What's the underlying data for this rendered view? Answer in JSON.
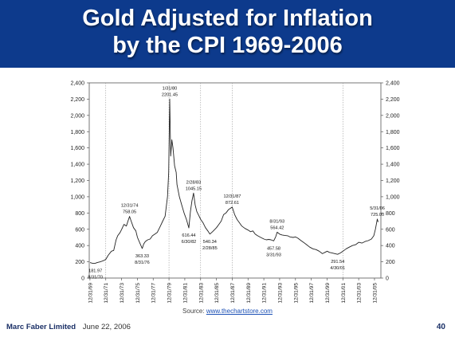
{
  "slide": {
    "title_line1": "Gold Adjusted for Inflation",
    "title_line2": "by the CPI 1969-2006",
    "source_prefix": "Source: ",
    "source_link": "www.thechartstore.com",
    "footer_org": "Marc Faber Limited",
    "footer_date": "June 22, 2006",
    "page_number": "40",
    "banner_color": "#0d3a8c"
  },
  "chart_data": {
    "type": "line",
    "title": "",
    "xlabel": "",
    "ylabel": "",
    "ylim": [
      0,
      2400
    ],
    "y_ticks": [
      0,
      200,
      400,
      600,
      800,
      1000,
      1200,
      1400,
      1600,
      1800,
      2000,
      2200,
      2400
    ],
    "y_tick_labels": [
      "0",
      "200",
      "400",
      "600",
      "800",
      "1,000",
      "1,200",
      "1,400",
      "1,600",
      "1,800",
      "2,000",
      "2,200",
      "2,400"
    ],
    "xlim": [
      1969.9,
      2006.8
    ],
    "x_ticks": [
      1969.99,
      1971.99,
      1973.99,
      1975.99,
      1977.99,
      1979.99,
      1981.99,
      1983.99,
      1985.99,
      1987.99,
      1989.99,
      1991.99,
      1993.99,
      1995.99,
      1997.99,
      1999.99,
      2001.99,
      2003.99,
      2005.99
    ],
    "x_tick_labels": [
      "12/31/69",
      "12/31/71",
      "12/31/73",
      "12/31/75",
      "12/31/77",
      "12/31/79",
      "12/31/81",
      "12/31/83",
      "12/31/85",
      "12/31/87",
      "12/31/89",
      "12/31/91",
      "12/31/93",
      "12/31/95",
      "12/31/97",
      "12/31/99",
      "12/31/01",
      "12/31/03",
      "12/31/05"
    ],
    "vlines": [
      1971.99,
      1979.99,
      1983.99,
      1987.99,
      2001.99
    ],
    "grid": false,
    "line_color": "#222222",
    "series": [
      {
        "values": [
          [
            1970.0,
            190
          ],
          [
            1970.3,
            182
          ],
          [
            1970.67,
            181.97
          ],
          [
            1970.9,
            190
          ],
          [
            1971.3,
            200
          ],
          [
            1971.7,
            215
          ],
          [
            1972.0,
            230
          ],
          [
            1972.3,
            280
          ],
          [
            1972.7,
            330
          ],
          [
            1973.0,
            340
          ],
          [
            1973.3,
            470
          ],
          [
            1973.5,
            520
          ],
          [
            1973.8,
            560
          ],
          [
            1974.0,
            600
          ],
          [
            1974.3,
            660
          ],
          [
            1974.6,
            640
          ],
          [
            1974.8,
            700
          ],
          [
            1975.0,
            758.05
          ],
          [
            1975.2,
            700
          ],
          [
            1975.5,
            620
          ],
          [
            1975.8,
            580
          ],
          [
            1976.0,
            500
          ],
          [
            1976.3,
            430
          ],
          [
            1976.6,
            363.33
          ],
          [
            1976.8,
            420
          ],
          [
            1977.0,
            450
          ],
          [
            1977.3,
            470
          ],
          [
            1977.6,
            480
          ],
          [
            1977.9,
            520
          ],
          [
            1978.2,
            540
          ],
          [
            1978.5,
            560
          ],
          [
            1978.9,
            640
          ],
          [
            1979.2,
            700
          ],
          [
            1979.5,
            760
          ],
          [
            1979.8,
            1000
          ],
          [
            1979.95,
            1300
          ],
          [
            1980.08,
            2201.45
          ],
          [
            1980.2,
            1500
          ],
          [
            1980.35,
            1700
          ],
          [
            1980.5,
            1600
          ],
          [
            1980.7,
            1380
          ],
          [
            1980.9,
            1300
          ],
          [
            1981.0,
            1150
          ],
          [
            1981.3,
            1000
          ],
          [
            1981.6,
            900
          ],
          [
            1981.9,
            800
          ],
          [
            1982.2,
            720
          ],
          [
            1982.5,
            616.44
          ],
          [
            1982.7,
            820
          ],
          [
            1982.9,
            950
          ],
          [
            1983.1,
            1045.15
          ],
          [
            1983.3,
            900
          ],
          [
            1983.5,
            820
          ],
          [
            1983.8,
            760
          ],
          [
            1984.0,
            720
          ],
          [
            1984.3,
            680
          ],
          [
            1984.6,
            620
          ],
          [
            1984.9,
            580
          ],
          [
            1985.16,
            540.34
          ],
          [
            1985.5,
            570
          ],
          [
            1985.8,
            600
          ],
          [
            1986.0,
            620
          ],
          [
            1986.3,
            660
          ],
          [
            1986.6,
            700
          ],
          [
            1986.9,
            780
          ],
          [
            1987.2,
            800
          ],
          [
            1987.5,
            840
          ],
          [
            1987.99,
            872.61
          ],
          [
            1988.3,
            780
          ],
          [
            1988.6,
            720
          ],
          [
            1988.9,
            680
          ],
          [
            1989.2,
            640
          ],
          [
            1989.6,
            610
          ],
          [
            1990.0,
            590
          ],
          [
            1990.3,
            570
          ],
          [
            1990.6,
            580
          ],
          [
            1990.9,
            540
          ],
          [
            1991.2,
            520
          ],
          [
            1991.6,
            500
          ],
          [
            1992.0,
            480
          ],
          [
            1992.3,
            470
          ],
          [
            1992.6,
            475
          ],
          [
            1992.9,
            470
          ],
          [
            1993.24,
            457.58
          ],
          [
            1993.5,
            510
          ],
          [
            1993.67,
            564.42
          ],
          [
            1994.0,
            540
          ],
          [
            1994.3,
            530
          ],
          [
            1994.6,
            525
          ],
          [
            1995.0,
            520
          ],
          [
            1995.3,
            505
          ],
          [
            1995.7,
            500
          ],
          [
            1996.0,
            505
          ],
          [
            1996.3,
            490
          ],
          [
            1996.7,
            460
          ],
          [
            1997.0,
            440
          ],
          [
            1997.4,
            410
          ],
          [
            1997.8,
            380
          ],
          [
            1998.2,
            360
          ],
          [
            1998.6,
            350
          ],
          [
            1999.0,
            330
          ],
          [
            1999.4,
            300
          ],
          [
            1999.8,
            320
          ],
          [
            2000.0,
            330
          ],
          [
            2000.3,
            315
          ],
          [
            2000.6,
            310
          ],
          [
            2001.0,
            300
          ],
          [
            2001.33,
            291.54
          ],
          [
            2001.7,
            310
          ],
          [
            2002.0,
            330
          ],
          [
            2002.4,
            360
          ],
          [
            2002.8,
            380
          ],
          [
            2003.2,
            400
          ],
          [
            2003.6,
            410
          ],
          [
            2004.0,
            440
          ],
          [
            2004.4,
            430
          ],
          [
            2004.8,
            450
          ],
          [
            2005.2,
            460
          ],
          [
            2005.6,
            480
          ],
          [
            2005.9,
            520
          ],
          [
            2006.1,
            600
          ],
          [
            2006.35,
            725.0
          ],
          [
            2006.45,
            690
          ]
        ]
      }
    ],
    "annotations": [
      {
        "x": 1970.67,
        "y": 181.97,
        "lines": [
          "181.97",
          "8/31/70"
        ],
        "position": "below"
      },
      {
        "x": 1975.0,
        "y": 758.05,
        "lines": [
          "12/31/74",
          "758.05"
        ],
        "position": "above"
      },
      {
        "x": 1976.6,
        "y": 363.33,
        "lines": [
          "363.33",
          "8/31/76"
        ],
        "position": "below"
      },
      {
        "x": 1980.08,
        "y": 2201.45,
        "lines": [
          "1/31/80",
          "2201.45"
        ],
        "position": "above"
      },
      {
        "x": 1982.5,
        "y": 616.44,
        "lines": [
          "616.44",
          "6/30/82"
        ],
        "position": "below"
      },
      {
        "x": 1983.1,
        "y": 1045.15,
        "lines": [
          "2/28/83",
          "1045.15"
        ],
        "position": "above"
      },
      {
        "x": 1985.16,
        "y": 540.34,
        "lines": [
          "540.34",
          "2/28/85"
        ],
        "position": "below"
      },
      {
        "x": 1987.99,
        "y": 872.61,
        "lines": [
          "12/31/87",
          "872.61"
        ],
        "position": "above"
      },
      {
        "x": 1993.24,
        "y": 457.58,
        "lines": [
          "457.58",
          "3/31/93"
        ],
        "position": "below"
      },
      {
        "x": 1993.67,
        "y": 564.42,
        "lines": [
          "8/31/93",
          "564.42"
        ],
        "position": "above"
      },
      {
        "x": 2001.33,
        "y": 291.54,
        "lines": [
          "291.54",
          "4/30/01"
        ],
        "position": "below"
      },
      {
        "x": 2006.35,
        "y": 725.0,
        "lines": [
          "5/31/06",
          "725.00"
        ],
        "position": "above"
      }
    ]
  }
}
